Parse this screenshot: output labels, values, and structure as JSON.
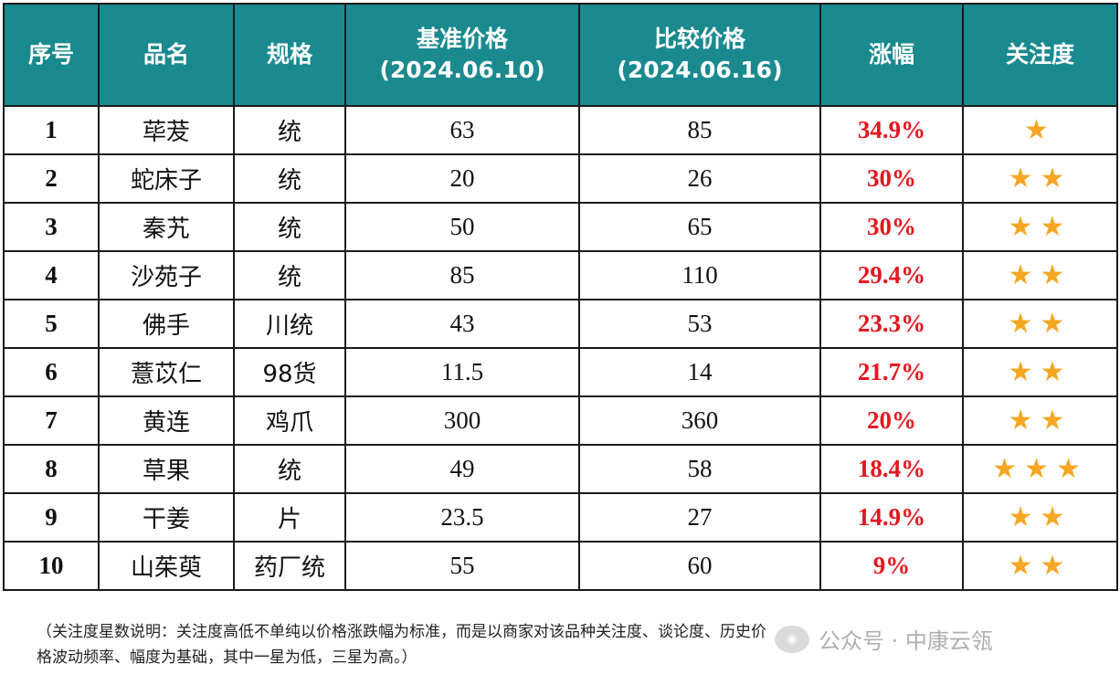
{
  "table": {
    "headers": [
      {
        "line1": "序号",
        "line2": ""
      },
      {
        "line1": "品名",
        "line2": ""
      },
      {
        "line1": "规格",
        "line2": ""
      },
      {
        "line1": "基准价格",
        "line2": "(2024.06.10)"
      },
      {
        "line1": "比较价格",
        "line2": "(2024.06.16)"
      },
      {
        "line1": "涨幅",
        "line2": ""
      },
      {
        "line1": "关注度",
        "line2": ""
      }
    ],
    "rows": [
      {
        "no": "1",
        "name": "荜茇",
        "spec": "统",
        "base": "63",
        "compare": "85",
        "change": "34.9%",
        "stars": "★",
        "star_count": 1
      },
      {
        "no": "2",
        "name": "蛇床子",
        "spec": "统",
        "base": "20",
        "compare": "26",
        "change": "30%",
        "stars": "★★",
        "star_count": 2
      },
      {
        "no": "3",
        "name": "秦艽",
        "spec": "统",
        "base": "50",
        "compare": "65",
        "change": "30%",
        "stars": "★★",
        "star_count": 2
      },
      {
        "no": "4",
        "name": "沙苑子",
        "spec": "统",
        "base": "85",
        "compare": "110",
        "change": "29.4%",
        "stars": "★★",
        "star_count": 2
      },
      {
        "no": "5",
        "name": "佛手",
        "spec": "川统",
        "base": "43",
        "compare": "53",
        "change": "23.3%",
        "stars": "★★",
        "star_count": 2
      },
      {
        "no": "6",
        "name": "薏苡仁",
        "spec": "98货",
        "base": "11.5",
        "compare": "14",
        "change": "21.7%",
        "stars": "★★",
        "star_count": 2
      },
      {
        "no": "7",
        "name": "黄连",
        "spec": "鸡爪",
        "base": "300",
        "compare": "360",
        "change": "20%",
        "stars": "★★",
        "star_count": 2
      },
      {
        "no": "8",
        "name": "草果",
        "spec": "统",
        "base": "49",
        "compare": "58",
        "change": "18.4%",
        "stars": "★★★",
        "star_count": 3
      },
      {
        "no": "9",
        "name": "干姜",
        "spec": "片",
        "base": "23.5",
        "compare": "27",
        "change": "14.9%",
        "stars": "★★",
        "star_count": 2
      },
      {
        "no": "10",
        "name": "山茱萸",
        "spec": "药厂统",
        "base": "55",
        "compare": "60",
        "change": "9%",
        "stars": "★★",
        "star_count": 2
      }
    ]
  },
  "note": {
    "line1": "（关注度星数说明：关注度高低不单纯以价格涨跌幅为标准，而是以商家对该品种关注度、谈论度、历史价",
    "line2": "格波动频率、幅度为基础，其中一星为低，三星为高。）"
  },
  "watermark": {
    "text": "公众号 · 中康云瓴"
  },
  "colors": {
    "header_bg": "#1a8a8f",
    "percent": "#e4161f",
    "star": "#f5a623"
  }
}
